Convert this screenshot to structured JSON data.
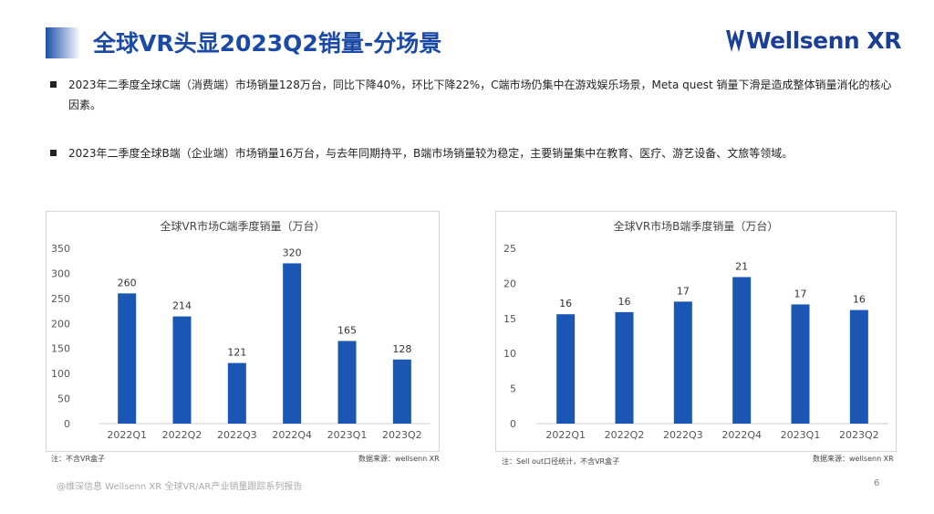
{
  "header": {
    "title": "全球VR头显2023Q2销量-分场景",
    "logo": "Wellsenn XR"
  },
  "bullets": [
    "2023年二季度全球C端（消费端）市场销量128万台，同比下降40%，环比下降22%，C端市场仍集中在游戏娱乐场景，Meta quest 销量下滑是造成整体销量消化的核心因素。",
    "2023年二季度全球B端（企业端）市场销量16万台，与去年同期持平，B端市场销量较为稳定，主要销量集中在教育、医疗、游艺设备、文旅等领域。"
  ],
  "chart_data": [
    {
      "type": "bar",
      "title": "全球VR市场C端季度销量（万台）",
      "categories": [
        "2022Q1",
        "2022Q2",
        "2022Q3",
        "2022Q4",
        "2023Q1",
        "2023Q2"
      ],
      "values": [
        260,
        214,
        121,
        320,
        165,
        128
      ],
      "yticks": [
        0,
        50,
        100,
        150,
        200,
        250,
        300,
        350
      ],
      "ylim": [
        0,
        350
      ],
      "grid": false,
      "bar_color": "#1a56b4",
      "note": "注：不含VR盒子",
      "source": "数据来源：wellsenn XR"
    },
    {
      "type": "bar",
      "title": "全球VR市场B端季度销量（万台）",
      "categories": [
        "2022Q1",
        "2022Q2",
        "2022Q3",
        "2022Q4",
        "2023Q1",
        "2023Q2"
      ],
      "values": [
        16,
        16,
        17,
        21,
        17,
        16
      ],
      "bar_values": [
        15.6,
        15.9,
        17.4,
        20.9,
        17.0,
        16.2
      ],
      "yticks": [
        0,
        5,
        10,
        15,
        20,
        25
      ],
      "ylim": [
        0,
        25
      ],
      "grid": false,
      "bar_color": "#1a56b4",
      "note": "注：Sell out口径统计，不含VR盒子",
      "source": "数据来源：wellsenn XR"
    }
  ],
  "footer": {
    "text": "@维深信息 Wellsenn XR 全球VR/AR产业销量跟踪系列报告",
    "page": "6"
  }
}
